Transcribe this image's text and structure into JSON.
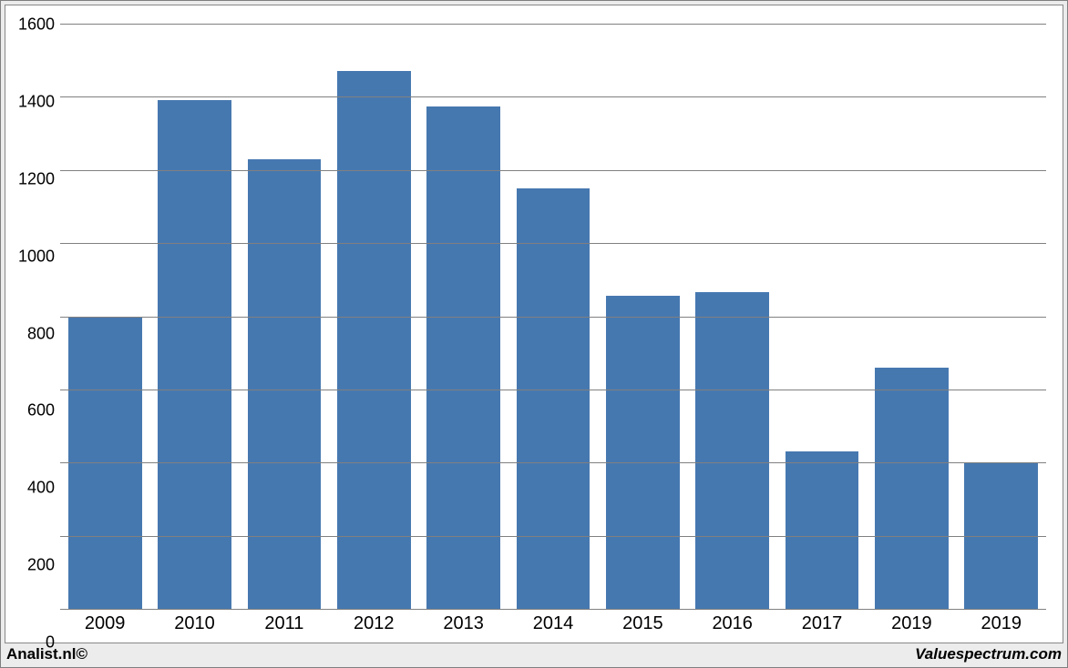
{
  "chart": {
    "type": "bar",
    "categories": [
      "2009",
      "2010",
      "2011",
      "2012",
      "2013",
      "2014",
      "2015",
      "2016",
      "2017",
      "2019",
      "2019"
    ],
    "values": [
      800,
      1390,
      1230,
      1470,
      1375,
      1150,
      855,
      865,
      430,
      660,
      400
    ],
    "bar_color": "#4678b0",
    "background_color": "#ffffff",
    "outer_background_color": "#ececec",
    "grid_color": "#808080",
    "border_color": "#888888",
    "ylim_min": 0,
    "ylim_max": 1650,
    "yticks": [
      0,
      200,
      400,
      600,
      800,
      1000,
      1200,
      1400,
      1600
    ],
    "tick_label_fontsize": 18,
    "x_label_fontsize": 20,
    "bar_width_ratio": 0.82
  },
  "footer": {
    "left": "Analist.nl©",
    "right": "Valuespectrum.com"
  }
}
